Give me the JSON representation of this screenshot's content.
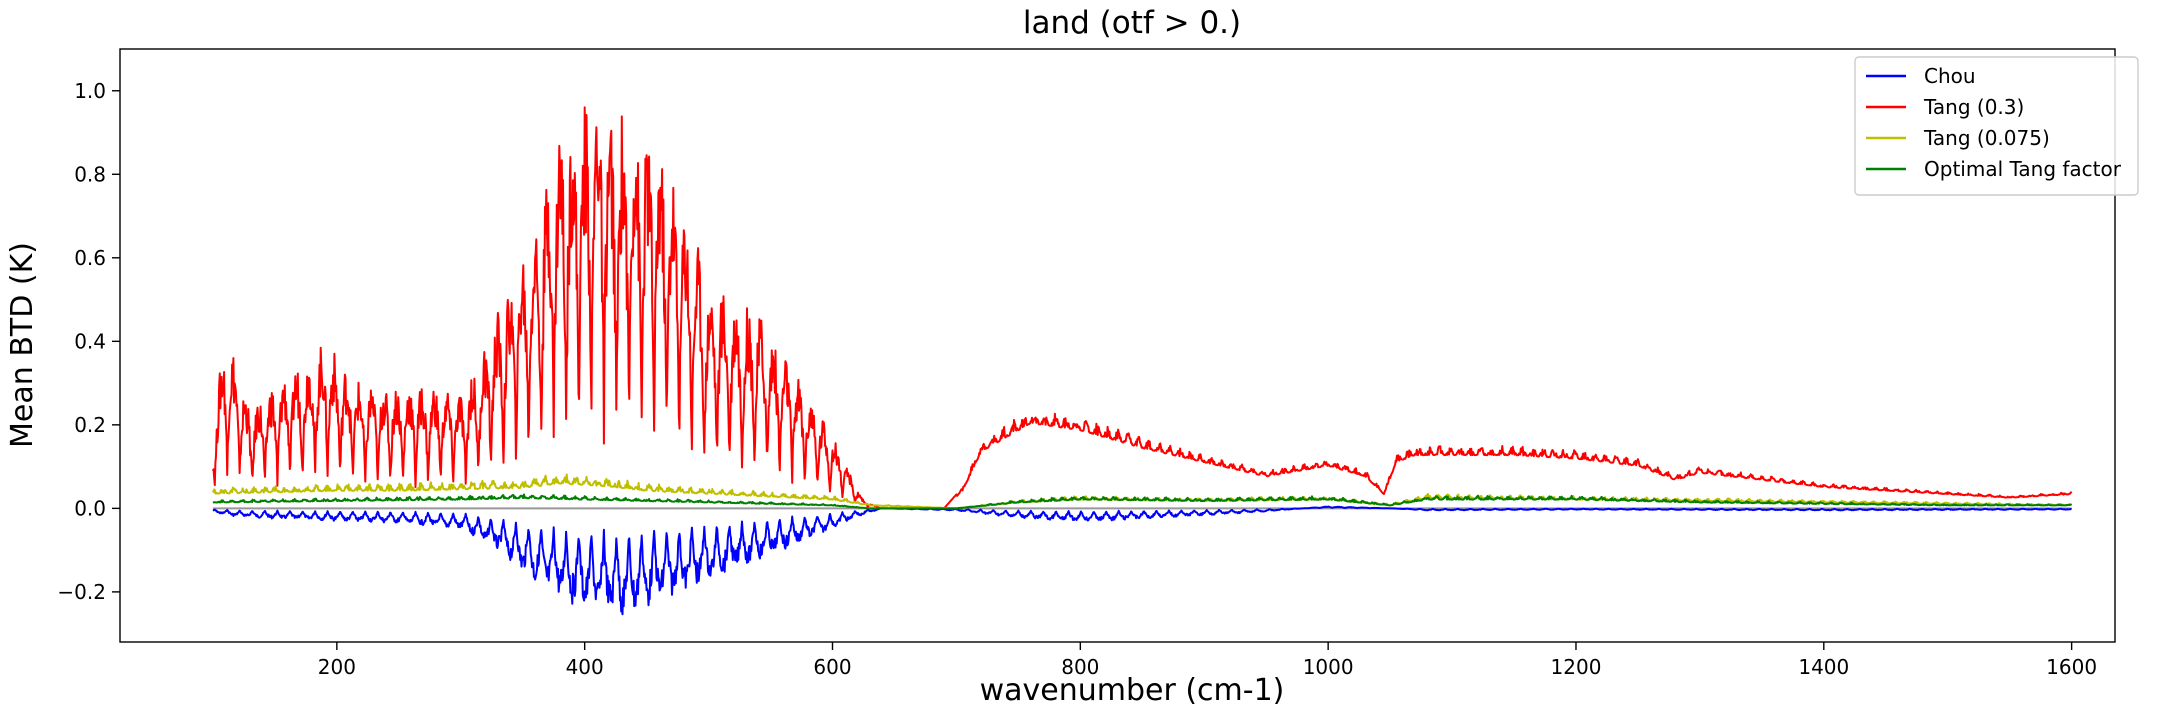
{
  "chart_data": {
    "type": "line",
    "title": "land (otf > 0.)",
    "xlabel": "wavenumber (cm-1)",
    "ylabel": "Mean BTD (K)",
    "xlim": [
      25,
      1635
    ],
    "ylim": [
      -0.32,
      1.1
    ],
    "xticks": [
      200,
      400,
      600,
      800,
      1000,
      1200,
      1400,
      1600
    ],
    "xtick_labels": [
      "200",
      "400",
      "600",
      "800",
      "1000",
      "1200",
      "1400",
      "1600"
    ],
    "yticks": [
      -0.2,
      0.0,
      0.2,
      0.4,
      0.6,
      0.8,
      1.0
    ],
    "ytick_labels": [
      "−0.2",
      "0.0",
      "0.2",
      "0.4",
      "0.6",
      "0.8",
      "1.0"
    ],
    "grid": false,
    "legend_position": "top-right",
    "series": [
      {
        "name": "Chou",
        "color": "#0000ff",
        "x": [
          100,
          120,
          150,
          200,
          250,
          300,
          330,
          360,
          390,
          410,
          430,
          450,
          480,
          520,
          560,
          600,
          620,
          640,
          700,
          740,
          780,
          820,
          880,
          940,
          1000,
          1050,
          1080,
          1200,
          1300,
          1400,
          1500,
          1600
        ],
        "envelope": [
          -0.01,
          -0.02,
          -0.025,
          -0.03,
          -0.035,
          -0.05,
          -0.1,
          -0.18,
          -0.23,
          -0.25,
          -0.26,
          -0.24,
          -0.2,
          -0.15,
          -0.1,
          -0.05,
          -0.02,
          0.0,
          -0.005,
          -0.02,
          -0.03,
          -0.03,
          -0.02,
          -0.01,
          0.005,
          0.0,
          -0.005,
          -0.003,
          -0.004,
          -0.005,
          -0.004,
          -0.003
        ]
      },
      {
        "name": "Tang (0.3)",
        "color": "#ff0000",
        "x": [
          100,
          110,
          130,
          160,
          190,
          220,
          250,
          280,
          300,
          320,
          340,
          360,
          380,
          400,
          410,
          420,
          440,
          460,
          480,
          500,
          520,
          540,
          560,
          580,
          600,
          615,
          625,
          640,
          690,
          705,
          720,
          740,
          760,
          780,
          800,
          850,
          900,
          950,
          1000,
          1030,
          1045,
          1055,
          1070,
          1100,
          1150,
          1200,
          1250,
          1280,
          1300,
          1350,
          1400,
          1450,
          1500,
          1550,
          1600
        ],
        "envelope": [
          0.2,
          0.44,
          0.25,
          0.33,
          0.4,
          0.3,
          0.3,
          0.3,
          0.28,
          0.4,
          0.55,
          0.7,
          0.95,
          0.98,
          1.05,
          0.96,
          0.96,
          0.9,
          0.75,
          0.55,
          0.52,
          0.48,
          0.38,
          0.28,
          0.18,
          0.08,
          0.02,
          0.0,
          0.0,
          0.05,
          0.16,
          0.2,
          0.24,
          0.23,
          0.22,
          0.17,
          0.13,
          0.09,
          0.12,
          0.09,
          0.04,
          0.13,
          0.15,
          0.15,
          0.15,
          0.14,
          0.12,
          0.08,
          0.1,
          0.08,
          0.06,
          0.05,
          0.04,
          0.03,
          0.04
        ]
      },
      {
        "name": "Tang (0.075)",
        "color": "#bfbf00",
        "x": [
          100,
          150,
          200,
          250,
          300,
          350,
          380,
          400,
          420,
          450,
          500,
          550,
          600,
          630,
          700,
          750,
          800,
          900,
          1000,
          1050,
          1080,
          1200,
          1300,
          1400,
          1500,
          1600
        ],
        "envelope": [
          0.05,
          0.055,
          0.06,
          0.06,
          0.065,
          0.07,
          0.085,
          0.08,
          0.075,
          0.06,
          0.05,
          0.04,
          0.03,
          0.01,
          0.0,
          0.02,
          0.03,
          0.025,
          0.03,
          0.01,
          0.035,
          0.03,
          0.025,
          0.02,
          0.015,
          0.01
        ]
      },
      {
        "name": "Optimal Tang factor",
        "color": "#008000",
        "x": [
          100,
          200,
          300,
          350,
          400,
          450,
          500,
          550,
          600,
          630,
          700,
          750,
          800,
          900,
          1000,
          1050,
          1080,
          1200,
          1300,
          1400,
          1500,
          1600
        ],
        "envelope": [
          0.02,
          0.025,
          0.03,
          0.035,
          0.03,
          0.025,
          0.02,
          0.015,
          0.01,
          0.0,
          0.0,
          0.02,
          0.03,
          0.025,
          0.03,
          0.01,
          0.03,
          0.03,
          0.02,
          0.015,
          0.01,
          0.01
        ]
      }
    ]
  }
}
